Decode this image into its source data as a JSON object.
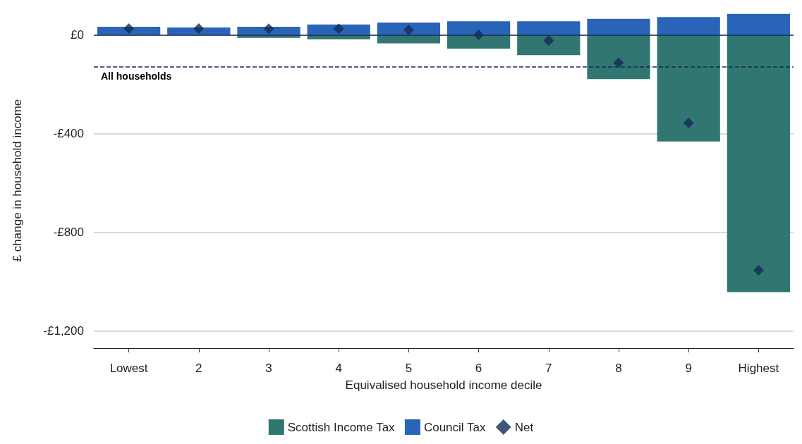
{
  "chart_data": {
    "type": "bar",
    "stacked": true,
    "xlabel": "Equivalised household income decile",
    "ylabel": "£ change in household income",
    "categories": [
      "Lowest",
      "2",
      "3",
      "4",
      "5",
      "6",
      "7",
      "8",
      "9",
      "Highest"
    ],
    "series": [
      {
        "name": "Scottish Income Tax",
        "color": "#327672",
        "values": [
          0,
          0,
          -12,
          -18,
          -34,
          -56,
          -82,
          -179,
          -432,
          -1043
        ]
      },
      {
        "name": "Council Tax",
        "color": "#2a64b8",
        "values": [
          33,
          30,
          33,
          42,
          50,
          55,
          55,
          65,
          72,
          85
        ]
      },
      {
        "name": "Net",
        "type": "scatter",
        "marker": "diamond",
        "color": "#132d55",
        "values": [
          26,
          26,
          25,
          25,
          20,
          0,
          -23,
          -113,
          -357,
          -954
        ]
      }
    ],
    "ylim": [
      -1270,
      90
    ],
    "yticks": [
      {
        "value": 0,
        "label": "£0"
      },
      {
        "value": -400,
        "label": "-£400"
      },
      {
        "value": -800,
        "label": "-£800"
      },
      {
        "value": -1200,
        "label": "-£1,200"
      }
    ],
    "ref_lines": [
      {
        "axis": "y",
        "value": 0,
        "label": null,
        "color": "#132d55",
        "line_style": "solid"
      },
      {
        "axis": "y",
        "value": -130,
        "label": "All households",
        "color": "#132d55",
        "line_style": "dashed"
      }
    ],
    "grid": "y",
    "legend": "bottom"
  }
}
